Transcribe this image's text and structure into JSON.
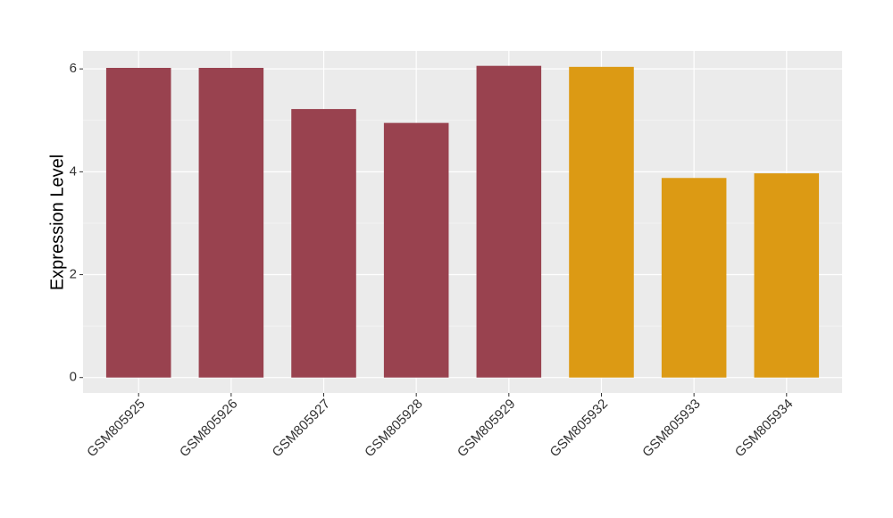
{
  "chart_data": {
    "type": "bar",
    "y_label": "Expression Level",
    "categories": [
      "GSM805925",
      "GSM805926",
      "GSM805927",
      "GSM805928",
      "GSM805929",
      "GSM805932",
      "GSM805933",
      "GSM805934"
    ],
    "values": [
      6.02,
      6.02,
      5.22,
      4.95,
      6.06,
      6.04,
      3.88,
      3.97
    ],
    "colors": [
      "#99424f",
      "#99424f",
      "#99424f",
      "#99424f",
      "#99424f",
      "#dc9a14",
      "#dc9a14",
      "#dc9a14"
    ],
    "ylim": [
      -0.3,
      6.35
    ],
    "yticks": [
      0,
      2,
      4,
      6
    ],
    "yminor": [
      1,
      3,
      5
    ],
    "grid": true
  }
}
